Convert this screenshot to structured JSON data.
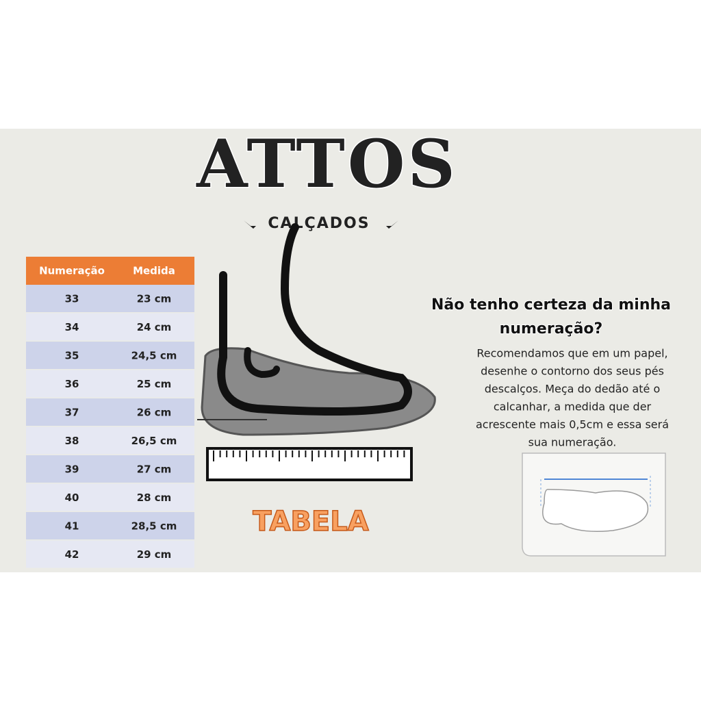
{
  "brand": {
    "name": "ATTOS",
    "subtitle": "CALÇADOS"
  },
  "table": {
    "header": [
      "Numeração",
      "Medida"
    ],
    "rows": [
      [
        "33",
        "23 cm"
      ],
      [
        "34",
        "24 cm"
      ],
      [
        "35",
        "24,5 cm"
      ],
      [
        "36",
        "25 cm"
      ],
      [
        "37",
        "26 cm"
      ],
      [
        "38",
        "26,5 cm"
      ],
      [
        "39",
        "27 cm"
      ],
      [
        "40",
        "28 cm"
      ],
      [
        "41",
        "28,5 cm"
      ],
      [
        "42",
        "29 cm"
      ]
    ]
  },
  "label": "TABELA",
  "help": {
    "title": [
      "Não tenho certeza da minha",
      "numeração?"
    ],
    "lines": [
      "Recomendamos que em um papel,",
      "desenhe o contorno dos seus pés",
      "descalços. Meça do dedão até o",
      "calcanhar, a medida que der",
      "acrescente mais 0,5cm e essa será",
      "sua numeração."
    ]
  }
}
